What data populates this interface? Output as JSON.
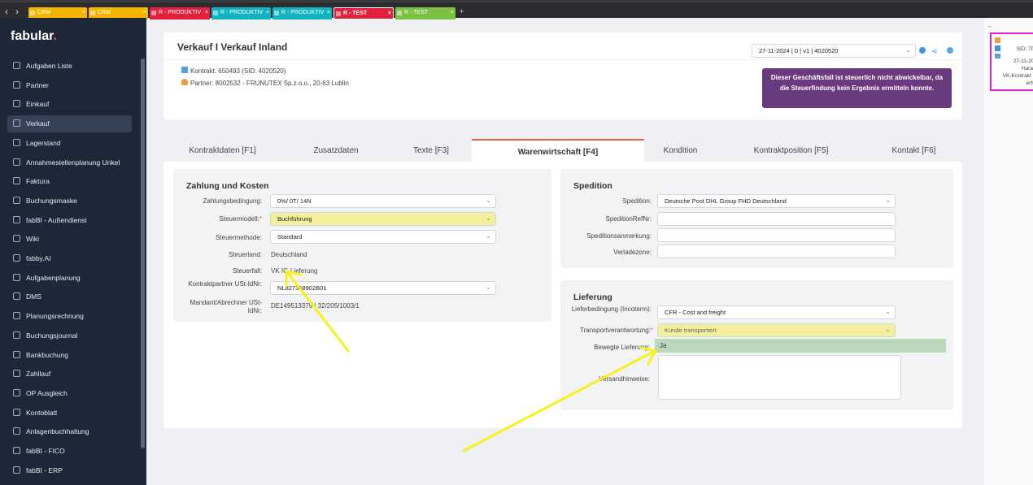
{
  "browser": {
    "tabs": [
      {
        "label": "CRM",
        "color": "#f4b400"
      },
      {
        "label": "CRM",
        "color": "#f4b400"
      },
      {
        "label": "R - PRODUKTIV",
        "color": "#e21f3d"
      },
      {
        "label": "R - PRODUKTIV",
        "color": "#12b3c0"
      },
      {
        "label": "R - PRODUKTIV",
        "color": "#12b3c0"
      },
      {
        "label": "R - TEST",
        "color": "#e21f3d"
      },
      {
        "label": "R - TEST",
        "color": "#7cc142"
      }
    ],
    "add_label": "+"
  },
  "sidebar": {
    "logo": "fabular",
    "items": [
      "Aufgaben Liste",
      "Partner",
      "Einkauf",
      "Verkauf",
      "Lagerstand",
      "Annahmestellenplanung Unkel",
      "Faktura",
      "Buchungsmaske",
      "fabBI - Außendienst",
      "Wiki",
      "fabby.AI",
      "Aufgabenplanung",
      "DMS",
      "Planungsrechnung",
      "Buchungsjournal",
      "Bankbuchung",
      "Zahllauf",
      "OP Ausgleich",
      "Kontoblatt",
      "Anlagenbuchhaltung",
      "fabBI - FICO",
      "fabBI - ERP"
    ],
    "active": "Verkauf"
  },
  "header": {
    "title": "Verkauf I Verkauf Inland",
    "kontrakt": "Kontrakt: 650493 (SID: 4020520)",
    "partner": "Partner: 8002532 - FRUNUTEX Sp.z.o.o., 20-63 Lublin",
    "version_select": "27-11-2024 | 0 | v1 | 4020520",
    "warning": "Dieser Geschäftsfall ist steuerlich nicht abwickelbar, da die Steuerfindung kein Ergebnis ermitteln konnte.",
    "warning_color": "#6a3a7e"
  },
  "tabs": [
    {
      "label": "Kontraktdaten [F1]"
    },
    {
      "label": "Zusatzdaten"
    },
    {
      "label": "Texte [F3]"
    },
    {
      "label": "Warenwirtschaft [F4]",
      "active": true
    },
    {
      "label": "Kondition"
    },
    {
      "label": "Kontraktposition [F5]"
    },
    {
      "label": "Kontakt [F6]"
    }
  ],
  "zahlung": {
    "title": "Zahlung und Kosten",
    "zahlungsbedingung_label": "Zahlungsbedingung:",
    "zahlungsbedingung": "0%/ 0T/ 14N",
    "steuermodell_label": "Steuermodell:",
    "steuermodell": "Buchführung",
    "steuermethode_label": "Steuermethode:",
    "steuermethode": "Standard",
    "steuerland_label": "Steuerland:",
    "steuerland": "Deutschland",
    "steuerfall_label": "Steuerfall:",
    "steuerfall": "VK IG-Lieferung",
    "kp_ustid_label": "Kontraktpartner USt-IdNr:",
    "kp_ustid": "NL827368902B01",
    "mandant_ustid_label": "Mandant/Abrechner USt-IdNr:",
    "mandant_ustid": "DE149513379 | 32/205/1003/1"
  },
  "spedition": {
    "title": "Spedition",
    "spedition_label": "Spedition:",
    "spedition": "Deutsche Post DHL Group FHD Deutschland",
    "refnr_label": "SpeditionRefNr:",
    "refnr": "",
    "anmerkung_label": "Speditionsanmerkung:",
    "anmerkung": "",
    "verladezone_label": "Verladezone:",
    "verladezone": ""
  },
  "lieferung": {
    "title": "Lieferung",
    "lieferbedingung_label": "Lieferbedingung (Incoterm):",
    "lieferbedingung": "CFR - Cost and freight",
    "transport_label": "Transportverantwortung:",
    "transport": "Kunde transportiert",
    "bewegte_label": "Bewegte Lieferung:",
    "bewegte": "Ja",
    "versand_label": "Versandhinweise:",
    "versand": ""
  },
  "right_panel": {
    "sid": "SID: 705",
    "date": "27-11-202",
    "user": "Harald",
    "desc": "VK-Kontrakt In",
    "status": "erfor"
  }
}
